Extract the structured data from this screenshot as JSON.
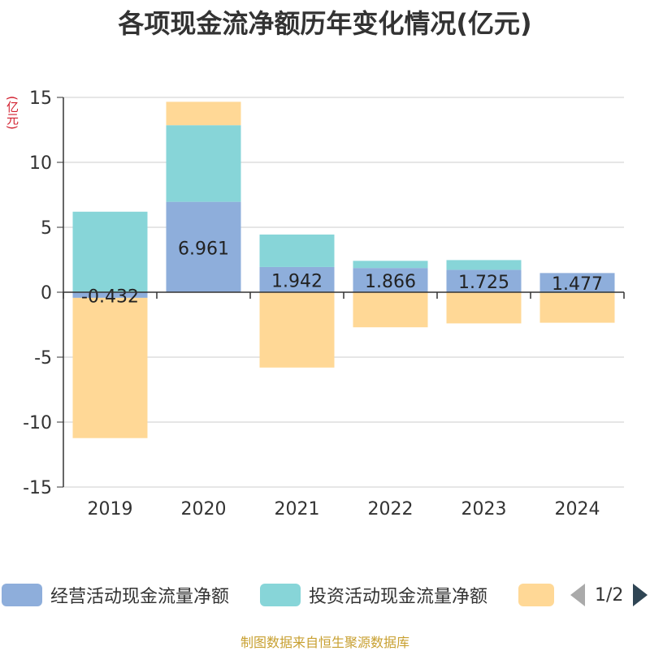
{
  "chart_data": {
    "type": "bar",
    "stacked": true,
    "title": "各项现金流净额历年变化情况(亿元)",
    "ylabel": "(亿元)",
    "categories": [
      "2019",
      "2020",
      "2021",
      "2022",
      "2023",
      "2024"
    ],
    "ylim": [
      -15,
      15
    ],
    "yticks": [
      15,
      10,
      5,
      0,
      -5,
      -10,
      -15
    ],
    "grid": true,
    "legend_position": "bottom",
    "series": [
      {
        "name": "经营活动现金流量净额",
        "color": "#8eaedb",
        "values": [
          -0.432,
          6.961,
          1.942,
          1.866,
          1.725,
          1.477
        ],
        "labels": [
          "-0.432",
          "6.961",
          "1.942",
          "1.866",
          "1.725",
          "1.477"
        ]
      },
      {
        "name": "投资活动现金流量净额",
        "color": "#87d5d8",
        "values": [
          6.2,
          5.9,
          2.5,
          0.55,
          0.75,
          -0.05
        ]
      },
      {
        "name": "",
        "color": "#ffd896",
        "values": [
          -10.8,
          1.8,
          -5.8,
          -2.7,
          -2.4,
          -2.3
        ]
      }
    ]
  },
  "legend": {
    "item1": "经营活动现金流量净额",
    "item2": "投资活动现金流量净额",
    "page": "1/2"
  },
  "source": "制图数据来自恒生聚源数据库"
}
